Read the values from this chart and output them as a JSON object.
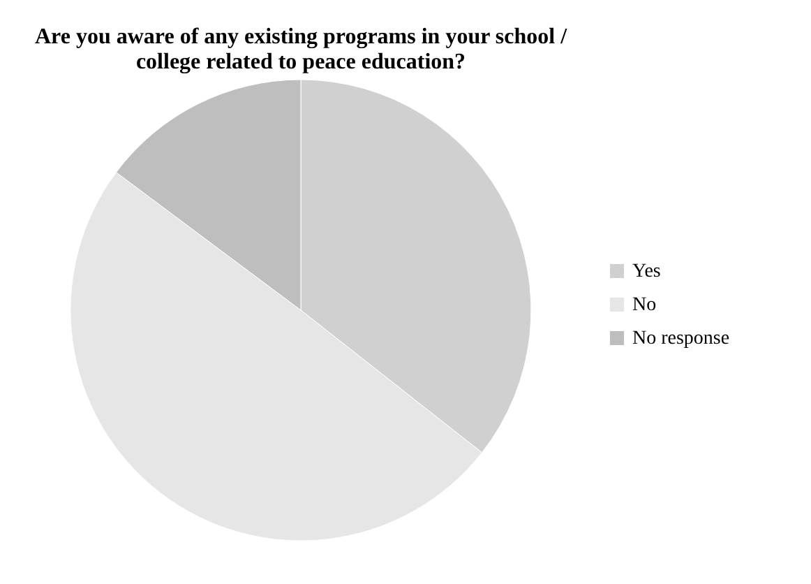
{
  "chart_data": {
    "type": "pie",
    "title": "Are you aware of any existing programs in your school / college related to peace education?",
    "categories": [
      "Yes",
      "No",
      "No response"
    ],
    "values": [
      35.6,
      49.6,
      14.8
    ],
    "colors": [
      "#d0d0d0",
      "#e6e6e6",
      "#bebebe"
    ],
    "legend": "right"
  }
}
